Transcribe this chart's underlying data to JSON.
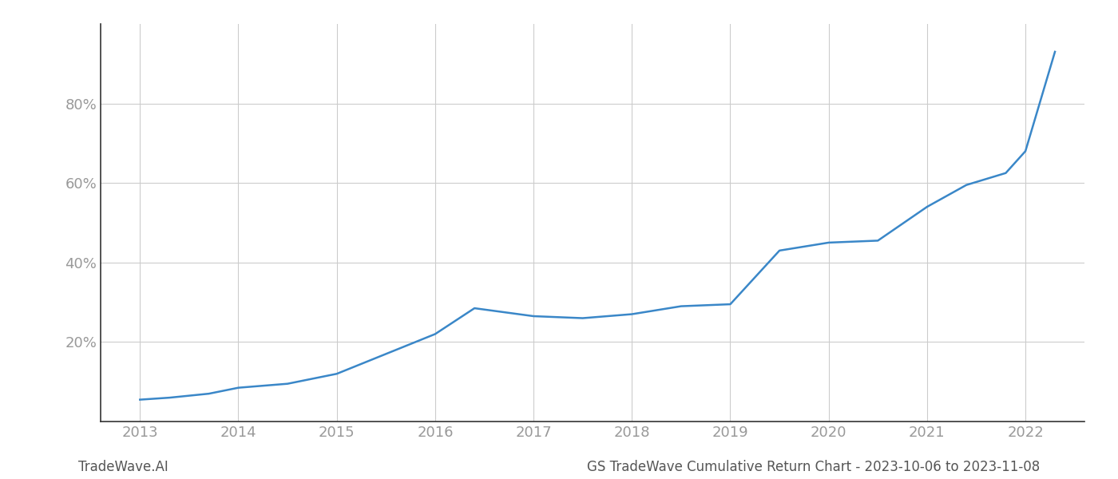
{
  "x_years": [
    2013.0,
    2013.3,
    2013.7,
    2014.0,
    2014.5,
    2015.0,
    2015.5,
    2016.0,
    2016.4,
    2017.0,
    2017.5,
    2018.0,
    2018.5,
    2019.0,
    2019.5,
    2020.0,
    2020.5,
    2021.0,
    2021.4,
    2021.8,
    2022.0,
    2022.3
  ],
  "y_values": [
    5.5,
    6.0,
    7.0,
    8.5,
    9.5,
    12.0,
    17.0,
    22.0,
    28.5,
    26.5,
    26.0,
    27.0,
    29.0,
    29.5,
    43.0,
    45.0,
    45.5,
    54.0,
    59.5,
    62.5,
    68.0,
    93.0
  ],
  "line_color": "#3a87c8",
  "line_width": 1.8,
  "xlim": [
    2012.6,
    2022.6
  ],
  "ylim": [
    0,
    100
  ],
  "yticks": [
    20,
    40,
    60,
    80
  ],
  "xticks": [
    2013,
    2014,
    2015,
    2016,
    2017,
    2018,
    2019,
    2020,
    2021,
    2022
  ],
  "grid_color": "#cccccc",
  "grid_linewidth": 0.8,
  "background_color": "#ffffff",
  "tick_color": "#999999",
  "tick_fontsize": 13,
  "footer_left": "TradeWave.AI",
  "footer_right": "GS TradeWave Cumulative Return Chart - 2023-10-06 to 2023-11-08",
  "footer_fontsize": 12,
  "footer_color": "#555555",
  "spine_color": "#333333",
  "left_spine_color": "#333333"
}
